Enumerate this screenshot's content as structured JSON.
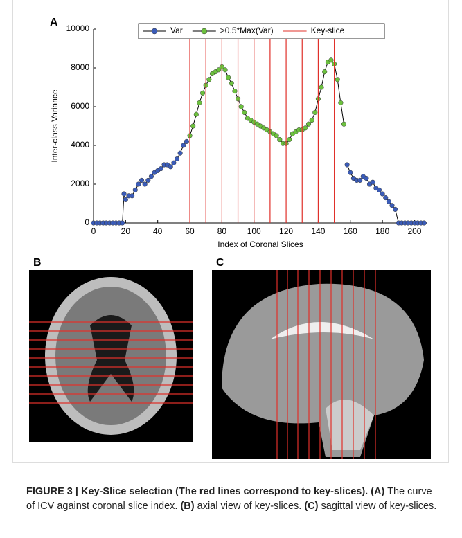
{
  "chart_data": {
    "type": "line",
    "panel_label": "A",
    "xlabel": "Index of Coronal Slices",
    "ylabel": "Inter-class Variance",
    "xlim": [
      0,
      208
    ],
    "ylim": [
      0,
      10000
    ],
    "xticks": [
      0,
      20,
      40,
      60,
      80,
      100,
      120,
      140,
      160,
      180,
      200
    ],
    "yticks": [
      0,
      2000,
      4000,
      6000,
      8000,
      10000
    ],
    "line_color": "#000000",
    "series": [
      {
        "name": "Var",
        "color": "#3b5cb8",
        "x": [
          0,
          2,
          4,
          6,
          8,
          10,
          12,
          14,
          16,
          18,
          19,
          20,
          22,
          24,
          26,
          28,
          30,
          32,
          34,
          36,
          38,
          40,
          42,
          44,
          46,
          48,
          50,
          52,
          54,
          56,
          58,
          108,
          158,
          160,
          162,
          164,
          166,
          168,
          170,
          172,
          174,
          176,
          178,
          180,
          182,
          184,
          186,
          188,
          190,
          192,
          194,
          196,
          198,
          200,
          202,
          204,
          206
        ],
        "values": [
          0,
          0,
          0,
          0,
          0,
          0,
          0,
          0,
          0,
          0,
          1500,
          1200,
          1400,
          1400,
          1700,
          2000,
          2200,
          2000,
          2200,
          2400,
          2600,
          2700,
          2800,
          3000,
          3000,
          2900,
          3100,
          3300,
          3600,
          4000,
          4200,
          null,
          3000,
          2600,
          2300,
          2200,
          2200,
          2400,
          2300,
          2000,
          2100,
          1800,
          1700,
          1500,
          1300,
          1100,
          900,
          700,
          0,
          0,
          0,
          0,
          0,
          0,
          0,
          0,
          0
        ]
      },
      {
        "name": ">0.5*Max(Var)",
        "color": "#6cc13e",
        "x": [
          60,
          62,
          64,
          66,
          68,
          70,
          72,
          74,
          76,
          78,
          80,
          82,
          84,
          86,
          88,
          90,
          92,
          94,
          96,
          98,
          100,
          102,
          104,
          106,
          108,
          110,
          112,
          114,
          116,
          118,
          120,
          122,
          124,
          126,
          128,
          130,
          132,
          134,
          136,
          138,
          140,
          142,
          144,
          146,
          148,
          150,
          152,
          154,
          156
        ],
        "values": [
          4500,
          5000,
          5600,
          6200,
          6700,
          7100,
          7400,
          7700,
          7800,
          7900,
          8050,
          7900,
          7500,
          7200,
          6800,
          6400,
          6000,
          5700,
          5400,
          5300,
          5200,
          5100,
          5000,
          4900,
          4800,
          4700,
          4600,
          4500,
          4300,
          4100,
          4100,
          4300,
          4600,
          4700,
          4800,
          4800,
          4900,
          5100,
          5300,
          5700,
          6400,
          7000,
          7800,
          8300,
          8400,
          8200,
          7400,
          6200,
          5100
        ]
      },
      {
        "name": "Key-slice",
        "color": "#e0302a",
        "type": "vline",
        "x": [
          60,
          70,
          80,
          90,
          100,
          110,
          120,
          130,
          140,
          150
        ]
      }
    ]
  },
  "panel_labels": [
    "B",
    "C"
  ],
  "caption": {
    "title": "FIGURE 3 | Key-Slice selection (The red lines correspond to key-slices).",
    "items": [
      {
        "label": "(A)",
        "text": "The curve of ICV against coronal slice index."
      },
      {
        "label": "(B)",
        "text": "axial view of key-slices."
      },
      {
        "label": "(C)",
        "text": "sagittal view of key-slices."
      }
    ]
  }
}
